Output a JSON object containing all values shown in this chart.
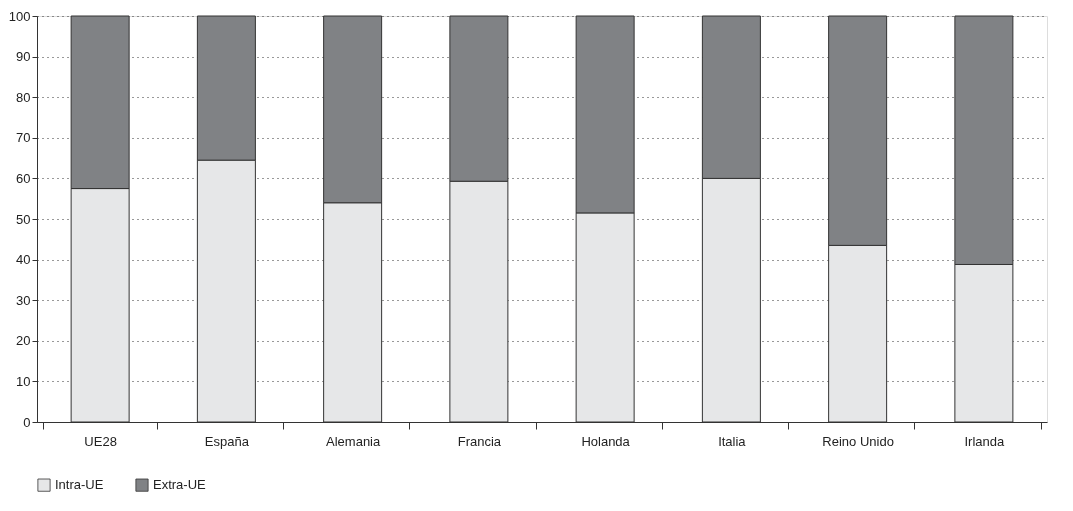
{
  "chart_data": {
    "type": "bar",
    "stacked": true,
    "categories": [
      "UE28",
      "España",
      "Alemania",
      "Francia",
      "Holanda",
      "Italia",
      "Reino Unido",
      "Irlanda"
    ],
    "series": [
      {
        "name": "Intra-UE",
        "color": "#e6e7e8",
        "values": [
          57.5,
          64.5,
          54,
          59.3,
          51.5,
          60,
          43.5,
          38.8
        ]
      },
      {
        "name": "Extra-UE",
        "color": "#808285",
        "values": [
          42.5,
          35.5,
          46,
          40.7,
          48.5,
          40,
          56.5,
          61.2
        ]
      }
    ],
    "ylim": [
      0,
      100
    ],
    "yticks": [
      0,
      10,
      20,
      30,
      40,
      50,
      60,
      70,
      80,
      90,
      100
    ],
    "grid": "y",
    "legend": "bottom"
  }
}
